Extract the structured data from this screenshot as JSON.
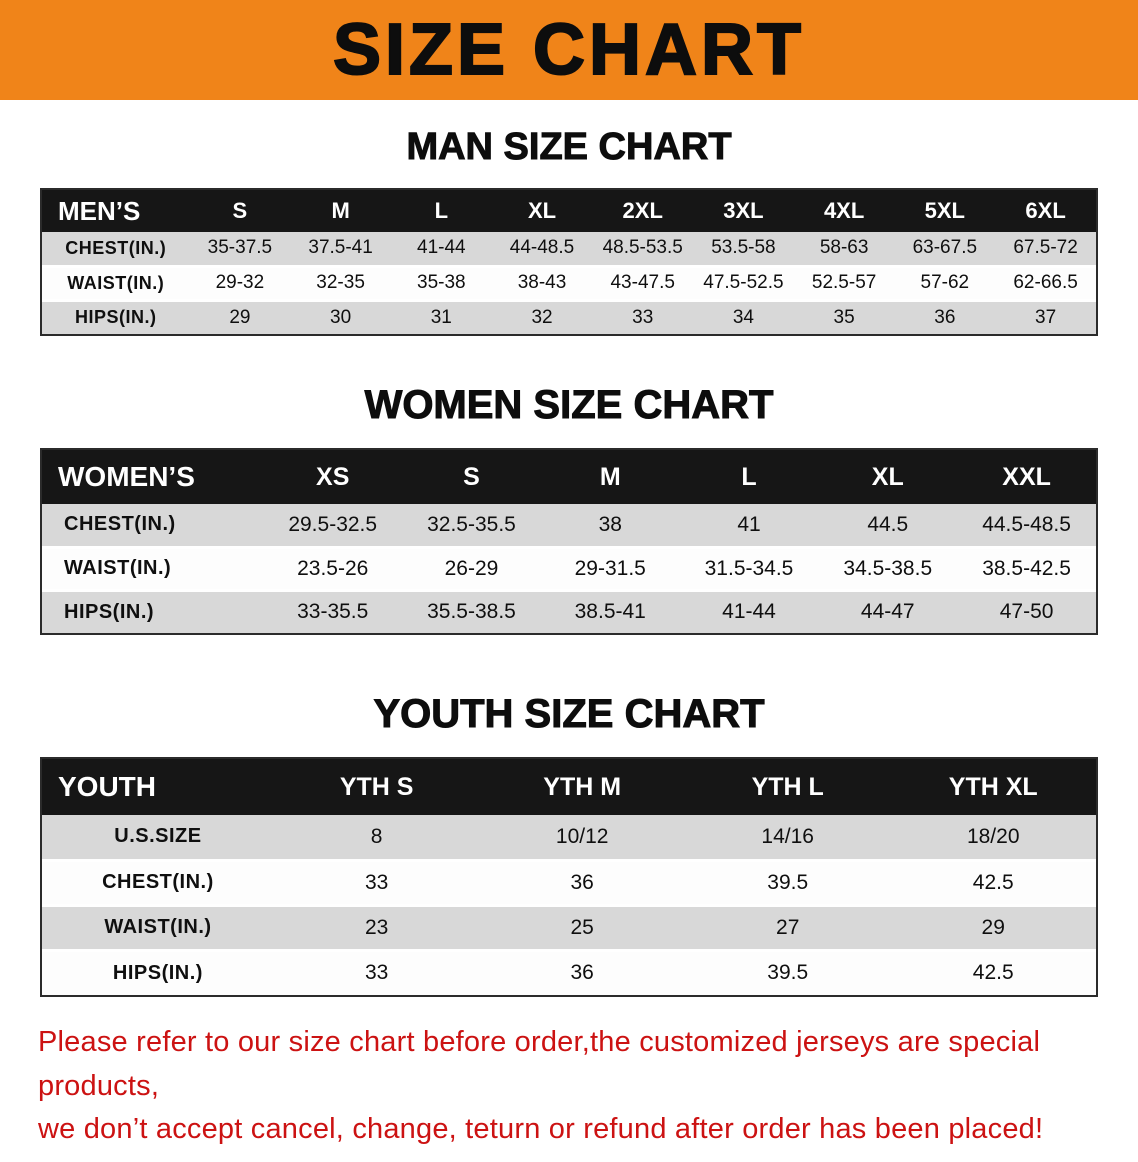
{
  "banner": {
    "title": "SIZE CHART"
  },
  "colors": {
    "banner_bg": "#f08419",
    "header_bg": "#161616",
    "row_shaded": "#d8d8d8",
    "row_plain": "#fdfdfd",
    "footer_red": "#cc1212"
  },
  "sections": [
    {
      "id": "men",
      "heading": "MAN SIZE CHART",
      "columns": [
        "MEN’S",
        "S",
        "M",
        "L",
        "XL",
        "2XL",
        "3XL",
        "4XL",
        "5XL",
        "6XL"
      ],
      "rows": [
        {
          "label": "CHEST(IN.)",
          "values": [
            "35-37.5",
            "37.5-41",
            "41-44",
            "44-48.5",
            "48.5-53.5",
            "53.5-58",
            "58-63",
            "63-67.5",
            "67.5-72"
          ]
        },
        {
          "label": "WAIST(IN.)",
          "values": [
            "29-32",
            "32-35",
            "35-38",
            "38-43",
            "43-47.5",
            "47.5-52.5",
            "52.5-57",
            "57-62",
            "62-66.5"
          ]
        },
        {
          "label": "HIPS(IN.)",
          "values": [
            "29",
            "30",
            "31",
            "32",
            "33",
            "34",
            "35",
            "36",
            "37"
          ]
        }
      ]
    },
    {
      "id": "women",
      "heading": "WOMEN SIZE CHART",
      "columns": [
        "WOMEN’S",
        "XS",
        "S",
        "M",
        "L",
        "XL",
        "XXL"
      ],
      "rows": [
        {
          "label": "CHEST(IN.)",
          "values": [
            "29.5-32.5",
            "32.5-35.5",
            "38",
            "41",
            "44.5",
            "44.5-48.5"
          ]
        },
        {
          "label": "WAIST(IN.)",
          "values": [
            "23.5-26",
            "26-29",
            "29-31.5",
            "31.5-34.5",
            "34.5-38.5",
            "38.5-42.5"
          ]
        },
        {
          "label": "HIPS(IN.)",
          "values": [
            "33-35.5",
            "35.5-38.5",
            "38.5-41",
            "41-44",
            "44-47",
            "47-50"
          ]
        }
      ]
    },
    {
      "id": "youth",
      "heading": "YOUTH SIZE CHART",
      "columns": [
        "YOUTH",
        "YTH S",
        "YTH M",
        "YTH L",
        "YTH XL"
      ],
      "rows": [
        {
          "label": "U.S.SIZE",
          "values": [
            "8",
            "10/12",
            "14/16",
            "18/20"
          ]
        },
        {
          "label": "CHEST(IN.)",
          "values": [
            "33",
            "36",
            "39.5",
            "42.5"
          ]
        },
        {
          "label": "WAIST(IN.)",
          "values": [
            "23",
            "25",
            "27",
            "29"
          ]
        },
        {
          "label": "HIPS(IN.)",
          "values": [
            "33",
            "36",
            "39.5",
            "42.5"
          ]
        }
      ]
    }
  ],
  "footer": {
    "line1": "Please refer to our size chart before order,the customized jerseys are special products,",
    "line2": "we don’t accept cancel, change, teturn or refund after order has been placed!"
  }
}
